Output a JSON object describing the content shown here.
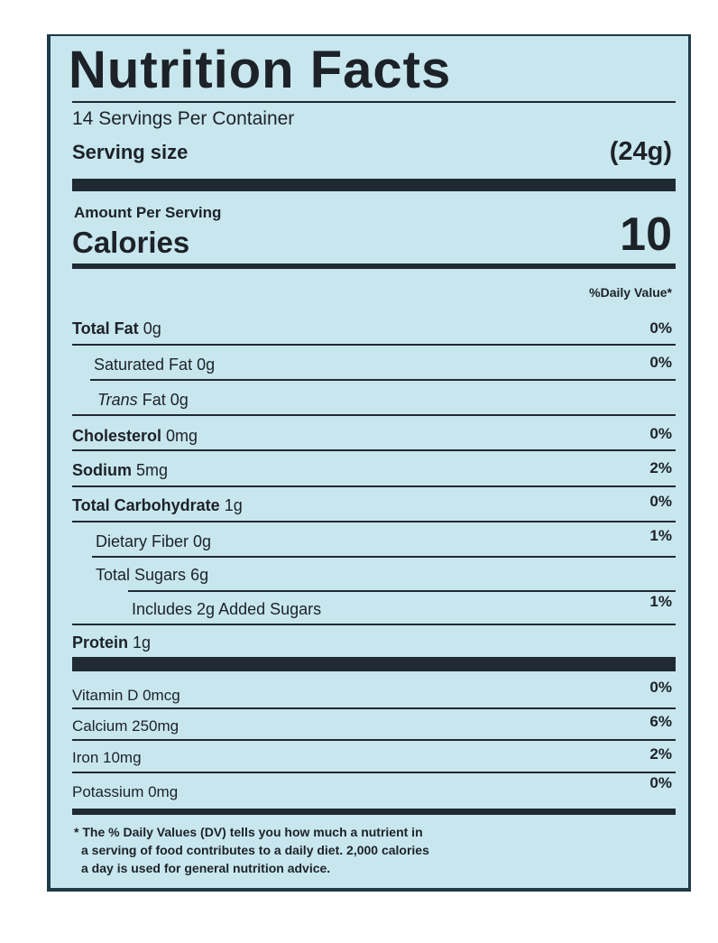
{
  "title": "Nutrition Facts",
  "servings_per_container": "14 Servings Per Container",
  "serving_size_label": "Serving size",
  "serving_size_value": "(24g)",
  "amount_per_serving": "Amount Per Serving",
  "calories_label": "Calories",
  "calories_value": "10",
  "daily_value_header": "%Daily Value*",
  "nutrients": [
    {
      "name": "Total Fat",
      "amount": "0g",
      "dv": "0%"
    },
    {
      "name": "Saturated Fat",
      "amount": "0g",
      "dv": "0%"
    },
    {
      "name": "Trans",
      "suffix": "Fat 0g",
      "dv": ""
    },
    {
      "name": "Cholesterol",
      "amount": "0mg",
      "dv": "0%"
    },
    {
      "name": "Sodium",
      "amount": "5mg",
      "dv": "2%"
    },
    {
      "name": "Total Carbohydrate",
      "amount": "1g",
      "dv": "0%"
    },
    {
      "name": "Dietary Fiber",
      "amount": "0g",
      "dv": "1%"
    },
    {
      "name": "Total Sugars",
      "amount": "6g",
      "dv": ""
    },
    {
      "name": "Includes 2g  Added Sugars",
      "amount": "",
      "dv": "1%"
    },
    {
      "name": "Protein",
      "amount": "1g",
      "dv": ""
    }
  ],
  "vitamins": [
    {
      "name": "Vitamin D 0mcg",
      "dv": "0%"
    },
    {
      "name": "Calcium 250mg",
      "dv": "6%"
    },
    {
      "name": "Iron 10mg",
      "dv": "2%"
    },
    {
      "name": "Potassium 0mg",
      "dv": "0%"
    }
  ],
  "footnote": [
    "* The % Daily Values (DV) tells you how much a nutrient in",
    "a serving of food contributes to a daily diet. 2,000 calories",
    "a day is used  for general nutrition advice."
  ],
  "colors": {
    "background": "#c8e6ee",
    "border": "#1f3a48",
    "text": "#1c2228"
  }
}
